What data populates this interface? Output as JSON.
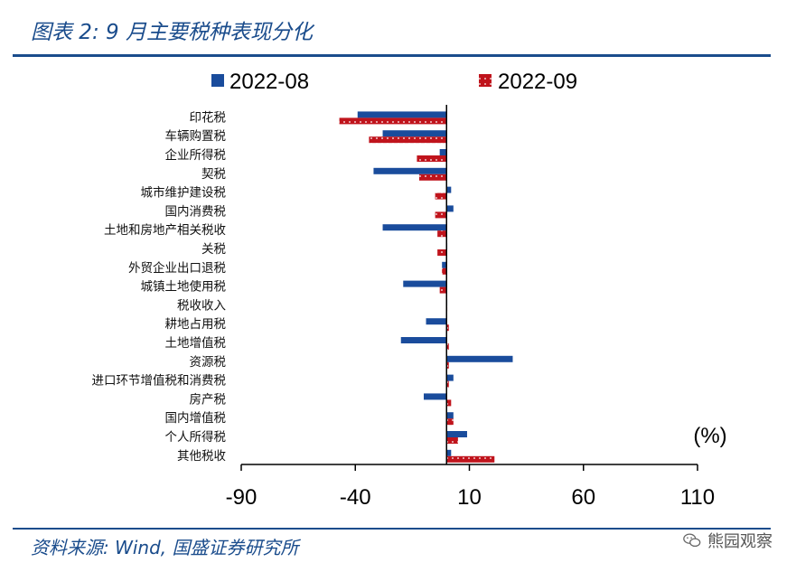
{
  "header": {
    "title": "图表 2:  9 月主要税种表现分化"
  },
  "footer": {
    "source": "资料来源: Wind, 国盛证券研究所",
    "watermark": "熊园观察",
    "watermark_icon": "wechat-icon"
  },
  "colors": {
    "series_2022_08": "#1a4c9c",
    "series_2022_09": "#c0141c",
    "rule": "#1a4c8c"
  },
  "chart_data": {
    "type": "bar",
    "orientation": "horizontal",
    "unit_label": "(%)",
    "categories": [
      "印花税",
      "车辆购置税",
      "企业所得税",
      "契税",
      "城市维护建设税",
      "国内消费税",
      "土地和房地产相关税收",
      "关税",
      "外贸企业出口退税",
      "城镇土地使用税",
      "税收收入",
      "耕地占用税",
      "土地增值税",
      "资源税",
      "进口环节增值税和消费税",
      "房产税",
      "国内增值税",
      "个人所得税",
      "其他税收"
    ],
    "series": [
      {
        "name": "2022-08",
        "values": [
          -39,
          -28,
          -3,
          -32,
          2,
          3,
          -28,
          0,
          -2,
          -19,
          0,
          -9,
          -20,
          29,
          3,
          -10,
          3,
          9,
          2
        ]
      },
      {
        "name": "2022-09",
        "values": [
          -47,
          -34,
          -13,
          -12,
          -5,
          -5,
          -4,
          -4,
          -2,
          -3,
          0,
          1,
          1,
          1,
          1,
          2,
          3,
          5,
          21
        ]
      }
    ],
    "xlim": [
      -90,
      110
    ],
    "xticks": [
      -90,
      -40,
      10,
      60,
      110
    ],
    "legend_position": "top",
    "grid": false
  }
}
